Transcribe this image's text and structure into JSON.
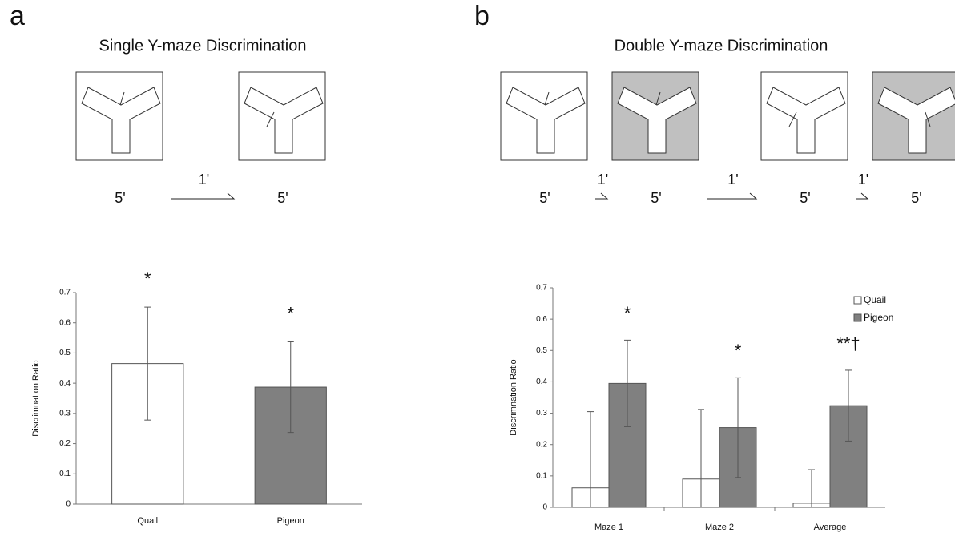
{
  "panels": [
    {
      "letter": "a",
      "title": "Single Y-maze Discrimination",
      "durations": [
        "5'",
        "5'"
      ],
      "intervals": [
        "1'"
      ]
    },
    {
      "letter": "b",
      "title": "Double Y-maze Discrimination",
      "durations": [
        "5'",
        "5'",
        "5'",
        "5'"
      ],
      "intervals": [
        "1'",
        "1'",
        "1'"
      ]
    }
  ],
  "chart_data": [
    {
      "type": "bar",
      "categories": [
        "Quail",
        "Pigeon"
      ],
      "values": [
        0.465,
        0.387
      ],
      "errors": [
        0.187,
        0.15
      ],
      "colors": [
        "#ffffff",
        "#808080"
      ],
      "ylabel": "Discrimnation Ratio",
      "ylim": [
        0,
        0.7
      ],
      "yticks": [
        0,
        0.1,
        0.2,
        0.3,
        0.4,
        0.5,
        0.6,
        0.7
      ],
      "annotations": [
        "*",
        "*"
      ]
    },
    {
      "type": "grouped_bar",
      "categories": [
        "Maze 1",
        "Maze 2",
        "Average"
      ],
      "series": [
        {
          "name": "Quail",
          "color": "#ffffff",
          "values": [
            0.062,
            0.09,
            0.013
          ],
          "errors": [
            0.243,
            0.222,
            0.107
          ]
        },
        {
          "name": "Pigeon",
          "color": "#808080",
          "values": [
            0.395,
            0.254,
            0.324
          ],
          "errors": [
            0.138,
            0.159,
            0.113
          ]
        }
      ],
      "ylabel": "Discrimnation Ratio",
      "ylim": [
        0,
        0.7
      ],
      "yticks": [
        0,
        0.1,
        0.2,
        0.3,
        0.4,
        0.5,
        0.6,
        0.7
      ],
      "annotations": [
        "*",
        "*",
        "**†"
      ],
      "legend": "upper right"
    }
  ]
}
